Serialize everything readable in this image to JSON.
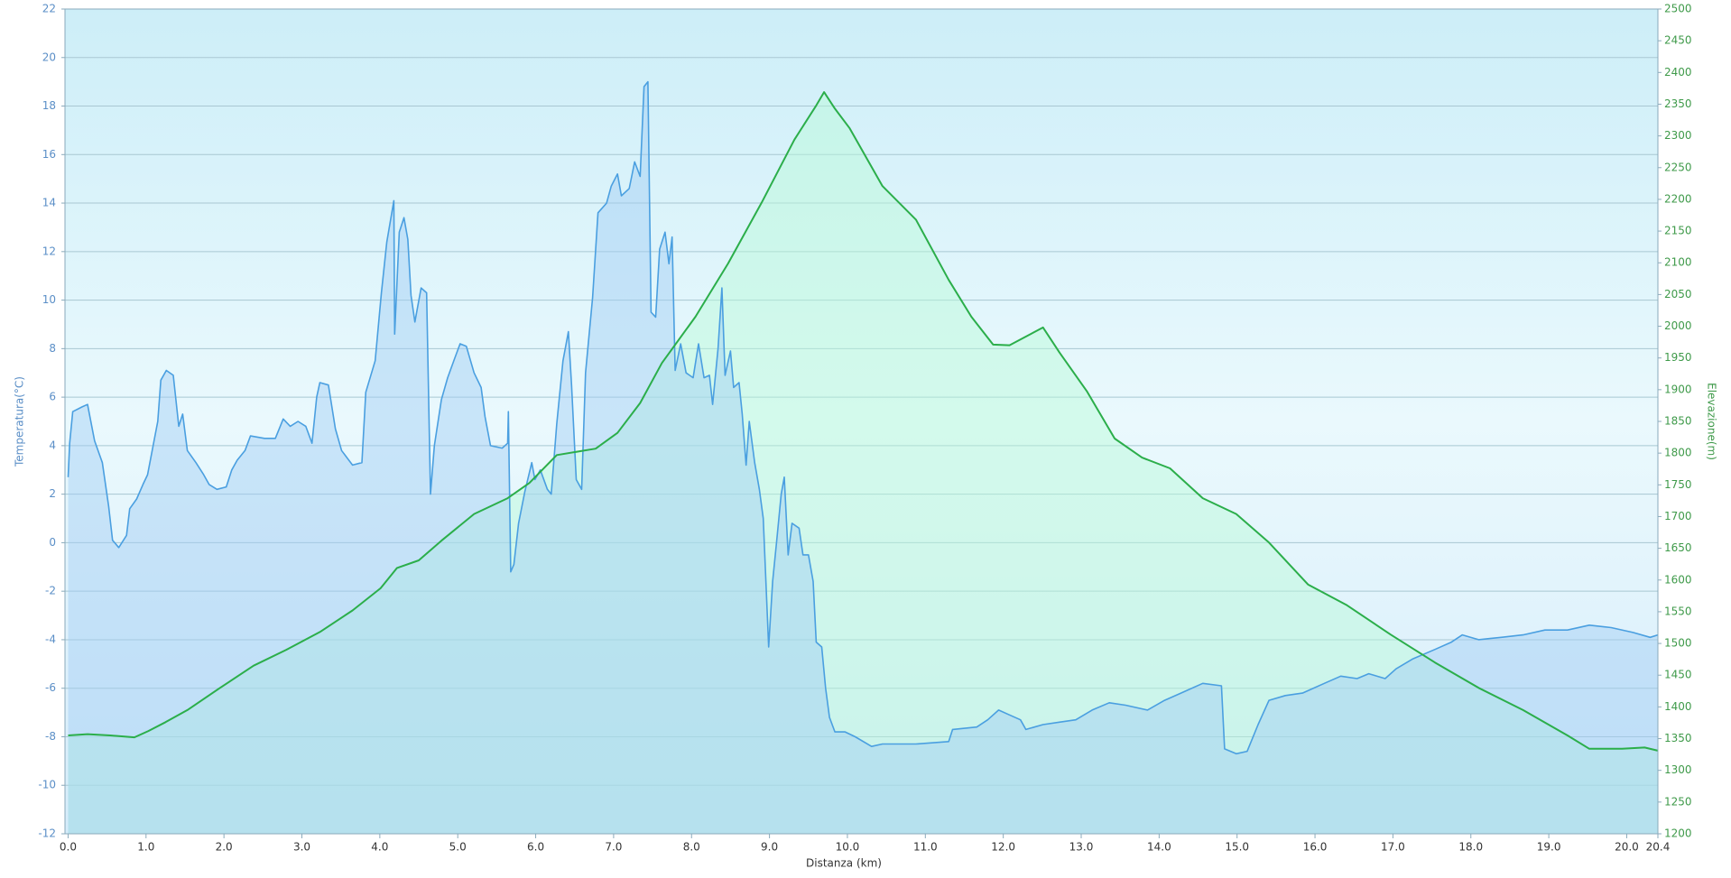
{
  "chart_data": {
    "type": "dual-area-line",
    "x_label": "Distanza  (km)",
    "y_label": "Temperatura(°C)",
    "y2_label": "Elevazione(m)",
    "xlim": [
      -0.04,
      20.4
    ],
    "xticks": [
      {
        "value": 0,
        "label": "0.0"
      },
      {
        "value": 1,
        "label": "1.0"
      },
      {
        "value": 2,
        "label": "2.0"
      },
      {
        "value": 3,
        "label": "3.0"
      },
      {
        "value": 4,
        "label": "4.0"
      },
      {
        "value": 5,
        "label": "5.0"
      },
      {
        "value": 6,
        "label": "6.0"
      },
      {
        "value": 7,
        "label": "7.0"
      },
      {
        "value": 8,
        "label": "8.0"
      },
      {
        "value": 9,
        "label": "9.0"
      },
      {
        "value": 10,
        "label": "10.0"
      },
      {
        "value": 11,
        "label": "11.0"
      },
      {
        "value": 12,
        "label": "12.0"
      },
      {
        "value": 13,
        "label": "13.0"
      },
      {
        "value": 14,
        "label": "14.0"
      },
      {
        "value": 15,
        "label": "15.0"
      },
      {
        "value": 16,
        "label": "16.0"
      },
      {
        "value": 17,
        "label": "17.0"
      },
      {
        "value": 18,
        "label": "18.0"
      },
      {
        "value": 19,
        "label": "19.0"
      },
      {
        "value": 20,
        "label": "20.0"
      },
      20.4
    ],
    "ylim": [
      -12,
      22
    ],
    "yticks": [
      -12,
      -10,
      -8,
      -6,
      -4,
      -2,
      0,
      2,
      4,
      6,
      8,
      10,
      12,
      14,
      16,
      18,
      20,
      22
    ],
    "y2lim": [
      1200,
      2500
    ],
    "y2ticks": [
      1200,
      1250,
      1300,
      1350,
      1400,
      1450,
      1500,
      1550,
      1600,
      1650,
      1700,
      1750,
      1800,
      1850,
      1900,
      1950,
      2000,
      2050,
      2100,
      2150,
      2200,
      2250,
      2300,
      2350,
      2400,
      2450,
      2500
    ],
    "grid": true,
    "series": [
      {
        "color": "#4a9fe0",
        "axis": "y",
        "x": [
          0.0,
          0.02,
          0.06,
          0.18,
          0.25,
          0.34,
          0.44,
          0.52,
          0.57,
          0.65,
          0.75,
          0.79,
          0.88,
          0.96,
          1.02,
          1.15,
          1.19,
          1.26,
          1.35,
          1.42,
          1.47,
          1.53,
          1.64,
          1.74,
          1.81,
          1.91,
          2.03,
          2.1,
          2.17,
          2.27,
          2.34,
          2.52,
          2.66,
          2.76,
          2.85,
          2.95,
          3.05,
          3.13,
          3.19,
          3.23,
          3.34,
          3.43,
          3.51,
          3.65,
          3.77,
          3.82,
          3.94,
          4.02,
          4.09,
          4.18,
          4.19,
          4.25,
          4.31,
          4.36,
          4.4,
          4.45,
          4.53,
          4.6,
          4.65,
          4.7,
          4.79,
          4.87,
          4.96,
          5.03,
          5.11,
          5.21,
          5.3,
          5.35,
          5.42,
          5.57,
          5.64,
          5.65,
          5.68,
          5.72,
          5.78,
          5.86,
          5.95,
          5.99,
          6.06,
          6.15,
          6.2,
          6.27,
          6.35,
          6.42,
          6.46,
          6.52,
          6.59,
          6.64,
          6.73,
          6.8,
          6.91,
          6.97,
          7.05,
          7.1,
          7.2,
          7.27,
          7.34,
          7.39,
          7.44,
          7.48,
          7.54,
          7.59,
          7.66,
          7.71,
          7.75,
          7.79,
          7.86,
          7.93,
          8.02,
          8.09,
          8.16,
          8.23,
          8.27,
          8.34,
          8.39,
          8.43,
          8.5,
          8.54,
          8.61,
          8.65,
          8.7,
          8.74,
          8.81,
          8.87,
          8.92,
          8.99,
          9.04,
          9.09,
          9.15,
          9.19,
          9.24,
          9.29,
          9.38,
          9.43,
          9.5,
          9.56,
          9.6,
          9.67,
          9.72,
          9.77,
          9.84,
          9.97,
          10.1,
          10.31,
          10.45,
          10.88,
          11.3,
          11.35,
          11.66,
          11.8,
          11.94,
          12.08,
          12.22,
          12.29,
          12.51,
          12.72,
          12.93,
          13.14,
          13.36,
          13.57,
          13.85,
          14.07,
          14.28,
          14.56,
          14.8,
          14.84,
          14.99,
          15.13,
          15.27,
          15.41,
          15.62,
          15.84,
          16.12,
          16.33,
          16.54,
          16.69,
          16.9,
          17.04,
          17.25,
          17.54,
          17.75,
          17.89,
          18.1,
          18.39,
          18.67,
          18.95,
          19.24,
          19.52,
          19.8,
          20.08,
          20.3,
          20.4
        ],
        "values": [
          2.7,
          4.1,
          5.4,
          5.6,
          5.7,
          4.2,
          3.3,
          1.5,
          0.1,
          -0.2,
          0.3,
          1.4,
          1.8,
          2.4,
          2.8,
          5.0,
          6.7,
          7.1,
          6.9,
          4.8,
          5.3,
          3.8,
          3.3,
          2.8,
          2.4,
          2.2,
          2.3,
          3.0,
          3.4,
          3.8,
          4.4,
          4.3,
          4.3,
          5.1,
          4.8,
          5.0,
          4.8,
          4.1,
          6.0,
          6.6,
          6.5,
          4.7,
          3.8,
          3.2,
          3.3,
          6.2,
          7.5,
          10.3,
          12.4,
          14.1,
          8.6,
          12.8,
          13.4,
          12.5,
          10.2,
          9.1,
          10.5,
          10.3,
          2.0,
          4.0,
          5.9,
          6.8,
          7.6,
          8.2,
          8.1,
          7.0,
          6.4,
          5.2,
          4.0,
          3.9,
          4.1,
          5.4,
          -1.2,
          -0.9,
          0.8,
          2.1,
          3.3,
          2.6,
          3.0,
          2.2,
          2.0,
          4.9,
          7.5,
          8.7,
          6.5,
          2.6,
          2.2,
          7.0,
          10.1,
          13.6,
          14.0,
          14.7,
          15.2,
          14.3,
          14.6,
          15.7,
          15.1,
          18.8,
          19.0,
          9.5,
          9.3,
          12.1,
          12.8,
          11.5,
          12.6,
          7.1,
          8.2,
          7.0,
          6.8,
          8.2,
          6.8,
          6.9,
          5.7,
          8.0,
          10.5,
          6.9,
          7.9,
          6.4,
          6.6,
          5.3,
          3.2,
          5.0,
          3.3,
          2.2,
          1.0,
          -4.3,
          -1.6,
          0.0,
          2.0,
          2.7,
          -0.5,
          0.8,
          0.6,
          -0.5,
          -0.5,
          -1.6,
          -4.1,
          -4.3,
          -6.0,
          -7.2,
          -7.8,
          -7.8,
          -8.0,
          -8.4,
          -8.3,
          -8.3,
          -8.2,
          -7.7,
          -7.6,
          -7.3,
          -6.9,
          -7.1,
          -7.3,
          -7.7,
          -7.5,
          -7.4,
          -7.3,
          -6.9,
          -6.6,
          -6.7,
          -6.9,
          -6.5,
          -6.2,
          -5.8,
          -5.9,
          -8.5,
          -8.7,
          -8.6,
          -7.5,
          -6.5,
          -6.3,
          -6.2,
          -5.8,
          -5.5,
          -5.6,
          -5.4,
          -5.6,
          -5.2,
          -4.8,
          -4.4,
          -4.1,
          -3.8,
          -4.0,
          -3.9,
          -3.8,
          -3.6,
          -3.6,
          -3.4,
          -3.5,
          -3.7,
          -3.9,
          -3.8
        ]
      },
      {
        "color": "#2bae4a",
        "axis": "y2",
        "x": [
          0.0,
          0.25,
          0.54,
          0.85,
          1.03,
          1.25,
          1.53,
          1.95,
          2.38,
          2.8,
          3.23,
          3.65,
          4.01,
          4.22,
          4.5,
          4.79,
          5.21,
          5.64,
          5.92,
          6.27,
          6.77,
          7.05,
          7.34,
          7.62,
          8.05,
          8.47,
          8.9,
          9.32,
          9.6,
          9.7,
          9.84,
          10.03,
          10.45,
          10.88,
          11.3,
          11.59,
          11.87,
          12.08,
          12.51,
          12.72,
          13.07,
          13.43,
          13.78,
          14.14,
          14.56,
          14.99,
          15.41,
          15.91,
          16.4,
          16.97,
          17.54,
          18.1,
          18.67,
          19.24,
          19.52,
          19.94,
          20.23,
          20.4
        ],
        "values": [
          1355,
          1357,
          1355,
          1352,
          1362,
          1376,
          1395,
          1430,
          1465,
          1490,
          1518,
          1552,
          1587,
          1619,
          1631,
          1662,
          1704,
          1729,
          1753,
          1797,
          1807,
          1832,
          1879,
          1942,
          2015,
          2099,
          2195,
          2294,
          2348,
          2369,
          2343,
          2312,
          2221,
          2168,
          2073,
          2015,
          1971,
          1970,
          1998,
          1959,
          1898,
          1823,
          1793,
          1776,
          1729,
          1704,
          1659,
          1593,
          1561,
          1514,
          1470,
          1430,
          1395,
          1355,
          1334,
          1334,
          1336,
          1331
        ]
      }
    ]
  }
}
